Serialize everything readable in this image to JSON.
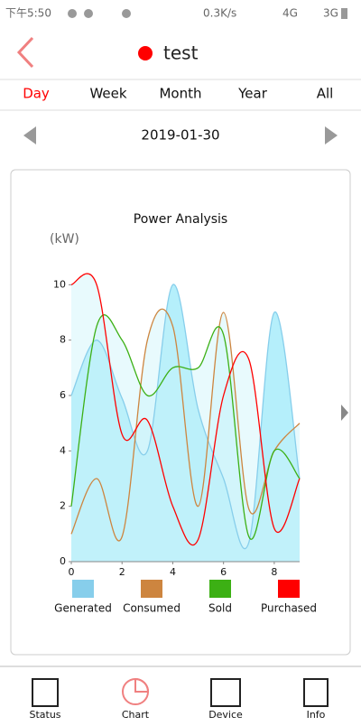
{
  "status_bar": {
    "time": "下午5:50",
    "speed": "0.3K/s",
    "net_1": "4G",
    "net_2": "3G"
  },
  "header": {
    "title": "test"
  },
  "tabs": [
    "Day",
    "Week",
    "Month",
    "Year",
    "All"
  ],
  "date": "2019-01-30",
  "chart_data": {
    "type": "line",
    "title": "Power Analysis",
    "y_label": "(kW)",
    "x": [
      0,
      1,
      2,
      3,
      4,
      5,
      6,
      7,
      8,
      9
    ],
    "xlim": [
      0,
      9
    ],
    "xticks": [
      0,
      2,
      4,
      6,
      8
    ],
    "ylim": [
      0,
      10.5
    ],
    "yticks": [
      0,
      2,
      4,
      6,
      8,
      10
    ],
    "area": true,
    "series": [
      {
        "name": "Generated",
        "color": "#87ceeb",
        "values": [
          6,
          8,
          5.9,
          4,
          10,
          5.5,
          3,
          0.7,
          9,
          3
        ]
      },
      {
        "name": "Consumed",
        "color": "#cd853f",
        "values": [
          1,
          3,
          0.9,
          8,
          8.5,
          2,
          9,
          1.9,
          4,
          5
        ]
      },
      {
        "name": "Sold",
        "color": "#3cb014",
        "values": [
          2,
          8.5,
          8,
          6,
          7,
          7,
          8.2,
          0.9,
          4,
          3
        ]
      },
      {
        "name": "Purchased",
        "color": "#ff0000",
        "values": [
          10,
          10,
          4.6,
          5.1,
          2,
          0.8,
          6,
          7.3,
          1.2,
          3
        ]
      }
    ]
  },
  "bottom_nav": [
    "Status",
    "Chart",
    "Device",
    "Info"
  ]
}
